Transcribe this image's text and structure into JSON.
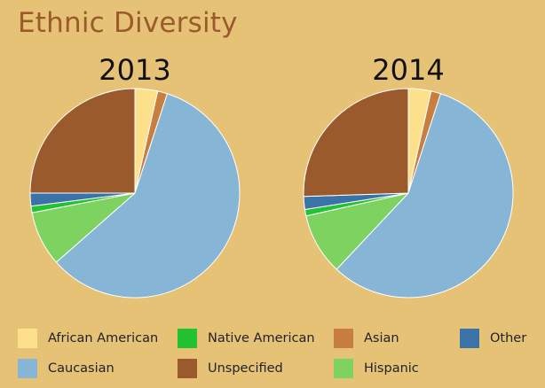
{
  "title": "Ethnic Diversity",
  "chart_data": [
    {
      "type": "pie",
      "title": "2013",
      "slices": [
        {
          "label": "African American",
          "value": 3.5,
          "color": "#fde08c"
        },
        {
          "label": "Asian",
          "value": 1.5,
          "color": "#c87e3e"
        },
        {
          "label": "Caucasian",
          "value": 58.5,
          "color": "#87b5d6"
        },
        {
          "label": "Hispanic",
          "value": 8.5,
          "color": "#7dd260"
        },
        {
          "label": "Native American",
          "value": 1.0,
          "color": "#22c233"
        },
        {
          "label": "Other",
          "value": 2.0,
          "color": "#3a73a8"
        },
        {
          "label": "Unspecified",
          "value": 25.0,
          "color": "#9b5a2c"
        }
      ]
    },
    {
      "type": "pie",
      "title": "2014",
      "slices": [
        {
          "label": "African American",
          "value": 3.5,
          "color": "#fde08c"
        },
        {
          "label": "Asian",
          "value": 1.5,
          "color": "#c87e3e"
        },
        {
          "label": "Caucasian",
          "value": 57.0,
          "color": "#87b5d6"
        },
        {
          "label": "Hispanic",
          "value": 9.5,
          "color": "#7dd260"
        },
        {
          "label": "Native American",
          "value": 1.0,
          "color": "#22c233"
        },
        {
          "label": "Other",
          "value": 2.0,
          "color": "#3a73a8"
        },
        {
          "label": "Unspecified",
          "value": 25.5,
          "color": "#9b5a2c"
        }
      ]
    }
  ],
  "legend": [
    {
      "label": "African American",
      "color": "#fde08c"
    },
    {
      "label": "Native American",
      "color": "#22c233"
    },
    {
      "label": "Asian",
      "color": "#c87e3e"
    },
    {
      "label": "Other",
      "color": "#3a73a8"
    },
    {
      "label": "Caucasian",
      "color": "#87b5d6"
    },
    {
      "label": "Unspecified",
      "color": "#9b5a2c"
    },
    {
      "label": "Hispanic",
      "color": "#7dd260"
    }
  ]
}
